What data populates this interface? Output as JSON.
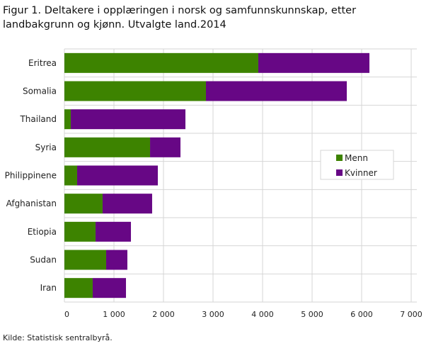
{
  "chart_data": {
    "type": "bar",
    "orientation": "horizontal",
    "stacked": true,
    "title": "Figur 1. Deltakere i opplæringen i norsk og samfunnskunnskap, etter landbakgrunn og kjønn. Utvalgte land.2014",
    "categories": [
      "Eritrea",
      "Somalia",
      "Thailand",
      "Syria",
      "Philippinene",
      "Afghanistan",
      "Etiopia",
      "Sudan",
      "Iran"
    ],
    "series": [
      {
        "name": "Menn",
        "color": "#3d8300",
        "values": [
          3914,
          2857,
          129,
          1729,
          257,
          771,
          629,
          843,
          571
        ]
      },
      {
        "name": "Kvinner",
        "color": "#670785",
        "values": [
          2243,
          2843,
          2314,
          614,
          1629,
          1000,
          714,
          428,
          672
        ]
      }
    ],
    "xlim": [
      0,
      7000
    ],
    "xticks": [
      0,
      1000,
      2000,
      3000,
      4000,
      5000,
      6000,
      7000
    ],
    "xtick_labels": [
      "0",
      "1 000",
      "2 000",
      "3 000",
      "4 000",
      "5 000",
      "6 000",
      "7 000"
    ],
    "grid": true,
    "legend_placement": "right",
    "source": "Kilde: Statistisk sentralbyrå."
  }
}
